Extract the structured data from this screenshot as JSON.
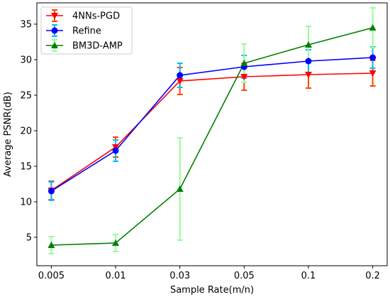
{
  "chart_data": {
    "type": "line",
    "xlabel": "Sample Rate(m/n)",
    "ylabel": "Average PSNR(dB)",
    "categories": [
      "0.005",
      "0.01",
      "0.03",
      "0.05",
      "0.1",
      "0.2"
    ],
    "ylim": [
      1,
      38
    ],
    "yticks": [
      5,
      10,
      15,
      20,
      25,
      30,
      35
    ],
    "grid": false,
    "legend_position": "top-left",
    "series": [
      {
        "name": "4NNs-PGD",
        "color": "#ff0000",
        "error_color": "#ff4500",
        "marker": "triangle-down",
        "values": [
          11.6,
          17.7,
          27.0,
          27.6,
          27.9,
          28.1
        ],
        "errors": [
          1.3,
          1.4,
          1.9,
          1.9,
          1.9,
          1.8
        ]
      },
      {
        "name": "Refine",
        "color": "#0000ff",
        "error_color": "#00bfff",
        "marker": "circle",
        "values": [
          11.5,
          17.2,
          27.8,
          29.0,
          29.8,
          30.3
        ],
        "errors": [
          1.3,
          1.5,
          1.7,
          1.6,
          1.6,
          1.5
        ]
      },
      {
        "name": "BM3D-AMP",
        "color": "#008000",
        "error_color": "#98fb98",
        "marker": "triangle-up",
        "values": [
          3.9,
          4.2,
          11.8,
          29.5,
          32.1,
          34.5
        ],
        "errors": [
          1.2,
          1.2,
          7.2,
          2.7,
          2.6,
          2.8
        ]
      }
    ]
  }
}
